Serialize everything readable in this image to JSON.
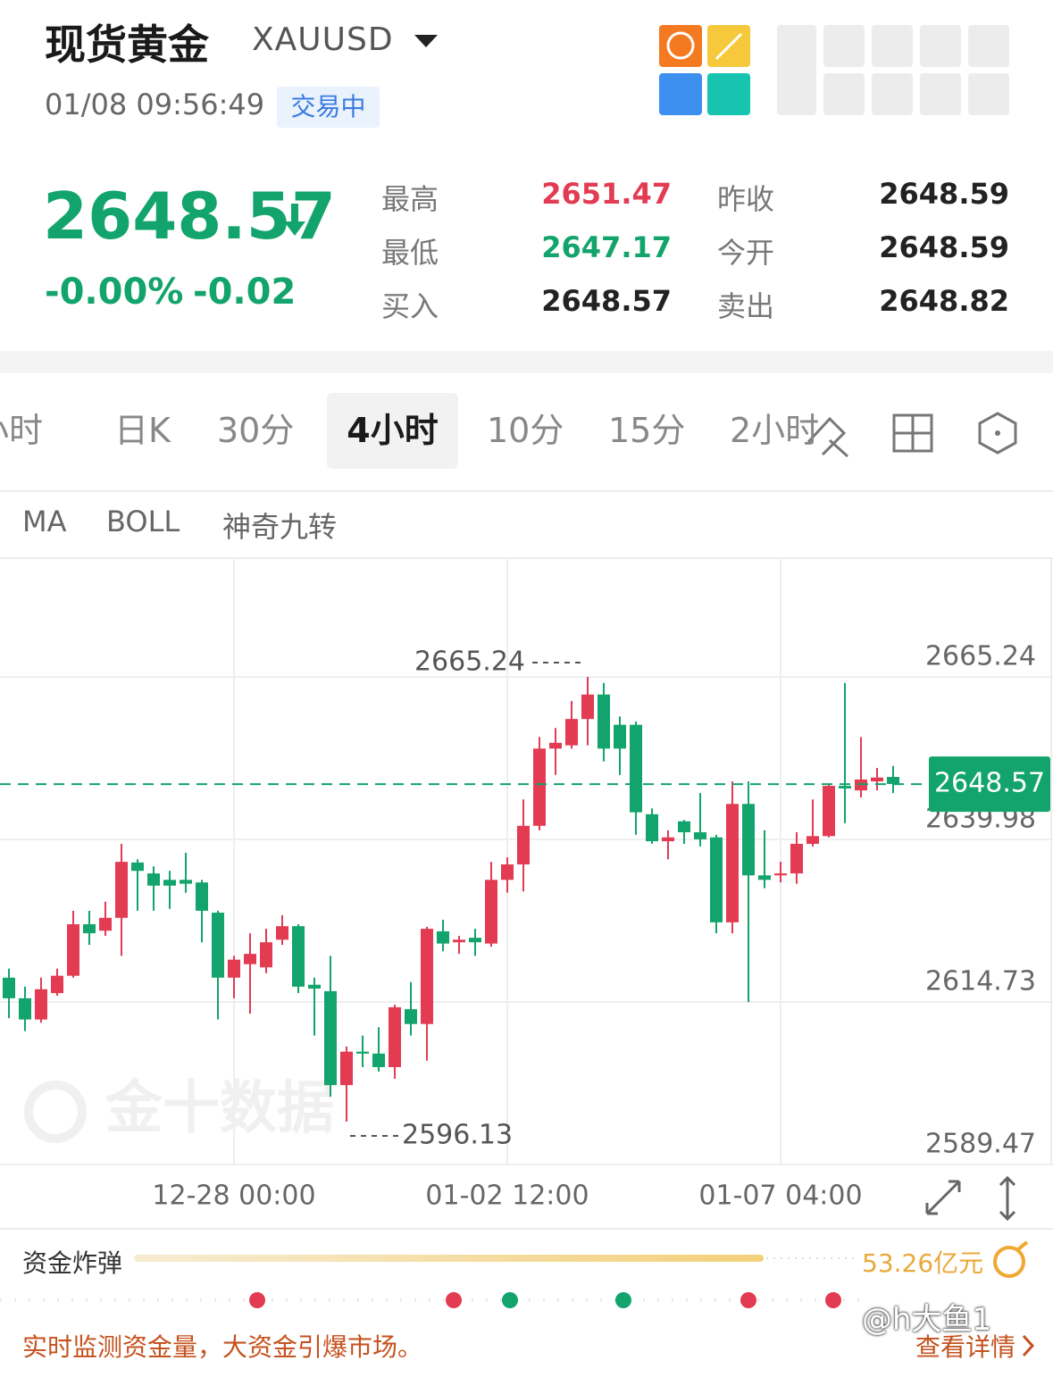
{
  "header": {
    "title": "现货黄金",
    "symbol": "XAUUSD",
    "time": "01/08 09:56:49",
    "status": "交易中"
  },
  "quote": {
    "price": "2648.57",
    "change_pct": "-0.00%",
    "change": "-0.02"
  },
  "stats": [
    [
      {
        "label": "最高",
        "value": "2651.47",
        "color": "#e23b52"
      },
      {
        "label": "昨收",
        "value": "2648.59",
        "color": "#222222"
      }
    ],
    [
      {
        "label": "最低",
        "value": "2647.17",
        "color": "#12a46c"
      },
      {
        "label": "今开",
        "value": "2648.59",
        "color": "#222222"
      }
    ],
    [
      {
        "label": "买入",
        "value": "2648.57",
        "color": "#222222"
      },
      {
        "label": "卖出",
        "value": "2648.82",
        "color": "#222222"
      }
    ]
  ],
  "tabs": [
    "小时",
    "日K",
    "30分",
    "4小时",
    "10分",
    "15分",
    "2小时"
  ],
  "active_tab": 3,
  "indicators": [
    "MA",
    "BOLL",
    "神奇九转"
  ],
  "chart_data": {
    "type": "candlestick",
    "categories": [
      null,
      null,
      null,
      null,
      null,
      null,
      null,
      null,
      null,
      null,
      null,
      null,
      null,
      null,
      "12-28 00:00",
      null,
      null,
      null,
      null,
      null,
      null,
      null,
      null,
      null,
      null,
      null,
      null,
      null,
      null,
      null,
      null,
      "01-02 12:00",
      null,
      null,
      null,
      null,
      null,
      null,
      null,
      null,
      null,
      null,
      null,
      null,
      null,
      null,
      null,
      null,
      "01-07 04:00",
      null,
      null,
      null,
      null,
      null,
      null,
      null
    ],
    "ohlc": [
      [
        2618.5,
        2619.9,
        2612.2,
        2615.3
      ],
      [
        2615.3,
        2617.1,
        2610.2,
        2612.0
      ],
      [
        2612.0,
        2618.5,
        2611.5,
        2616.7
      ],
      [
        2616.1,
        2619.9,
        2615.7,
        2618.8
      ],
      [
        2618.8,
        2628.9,
        2618.5,
        2626.8
      ],
      [
        2626.8,
        2628.9,
        2623.6,
        2625.4
      ],
      [
        2625.8,
        2630.3,
        2625.0,
        2627.8
      ],
      [
        2627.8,
        2639.3,
        2621.9,
        2636.5
      ],
      [
        2636.4,
        2636.9,
        2628.9,
        2635.1
      ],
      [
        2634.7,
        2635.8,
        2628.9,
        2632.8
      ],
      [
        2633.7,
        2635.1,
        2629.2,
        2632.8
      ],
      [
        2633.7,
        2637.9,
        2631.7,
        2633.1
      ],
      [
        2633.3,
        2633.7,
        2624.0,
        2628.9
      ],
      [
        2628.6,
        2628.9,
        2612.0,
        2618.5
      ],
      [
        2618.5,
        2621.9,
        2615.3,
        2621.3
      ],
      [
        2620.6,
        2625.4,
        2612.9,
        2622.2
      ],
      [
        2620.1,
        2626.1,
        2619.2,
        2624.0
      ],
      [
        2624.4,
        2628.2,
        2623.6,
        2626.5
      ],
      [
        2626.5,
        2626.8,
        2616.1,
        2617.1
      ],
      [
        2617.4,
        2618.5,
        2609.5,
        2616.8
      ],
      [
        2616.4,
        2621.9,
        2600.0,
        2601.8
      ],
      [
        2601.8,
        2607.8,
        2596.13,
        2607.0
      ],
      [
        2607.0,
        2609.5,
        2604.6,
        2606.7
      ],
      [
        2606.7,
        2610.8,
        2603.9,
        2604.6
      ],
      [
        2604.6,
        2614.3,
        2602.8,
        2613.9
      ],
      [
        2613.6,
        2617.8,
        2609.5,
        2611.3
      ],
      [
        2611.3,
        2626.4,
        2605.6,
        2626.1
      ],
      [
        2625.7,
        2627.5,
        2622.6,
        2623.8
      ],
      [
        2624.0,
        2625.0,
        2622.2,
        2624.4
      ],
      [
        2624.7,
        2626.1,
        2621.9,
        2624.0
      ],
      [
        2623.8,
        2636.5,
        2623.3,
        2633.7
      ],
      [
        2633.7,
        2637.2,
        2631.7,
        2636.1
      ],
      [
        2636.1,
        2646.2,
        2631.9,
        2642.1
      ],
      [
        2642.1,
        2655.9,
        2641.4,
        2654.1
      ],
      [
        2654.1,
        2657.3,
        2650.0,
        2655.0
      ],
      [
        2654.6,
        2661.5,
        2654.1,
        2658.7
      ],
      [
        2658.7,
        2665.24,
        2654.6,
        2662.5
      ],
      [
        2662.5,
        2664.3,
        2652.1,
        2654.1
      ],
      [
        2657.8,
        2659.1,
        2650.0,
        2654.1
      ],
      [
        2657.8,
        2658.3,
        2640.7,
        2644.2
      ],
      [
        2643.9,
        2644.8,
        2639.3,
        2639.7
      ],
      [
        2639.7,
        2641.4,
        2636.9,
        2640.3
      ],
      [
        2642.8,
        2643.0,
        2639.3,
        2641.1
      ],
      [
        2641.1,
        2647.2,
        2638.9,
        2640.0
      ],
      [
        2640.3,
        2640.7,
        2625.4,
        2627.1
      ],
      [
        2627.1,
        2649.0,
        2625.4,
        2645.5
      ],
      [
        2645.5,
        2649.0,
        2614.7,
        2634.4
      ],
      [
        2634.4,
        2641.4,
        2632.4,
        2633.7
      ],
      [
        2634.4,
        2636.5,
        2633.3,
        2634.7
      ],
      [
        2634.7,
        2641.1,
        2633.1,
        2639.3
      ],
      [
        2639.3,
        2646.2,
        2638.9,
        2640.5
      ],
      [
        2640.5,
        2648.6,
        2640.3,
        2648.3
      ],
      [
        2648.3,
        2664.3,
        2642.5,
        2647.9
      ],
      [
        2647.6,
        2655.9,
        2646.5,
        2649.3
      ],
      [
        2649.0,
        2651.1,
        2647.6,
        2649.6
      ],
      [
        2649.7,
        2651.4,
        2647.2,
        2648.6
      ]
    ],
    "up_color": "#e23b52",
    "down_color": "#12a46c",
    "ylim": [
      2589.47,
      2683.7
    ],
    "yticks": [
      2665.24,
      2639.98,
      2614.73,
      2589.47
    ],
    "grid": true,
    "last_price": 2648.57,
    "high_label": 2665.24,
    "low_label": 2596.13,
    "watermark": "金十数据"
  },
  "fund": {
    "title": "资金炸弹",
    "amount": "53.26亿元",
    "slogan": "实时监测资金量，大资金引爆市场。",
    "link": "查看详情"
  },
  "overlay_text": "@h大鱼1"
}
